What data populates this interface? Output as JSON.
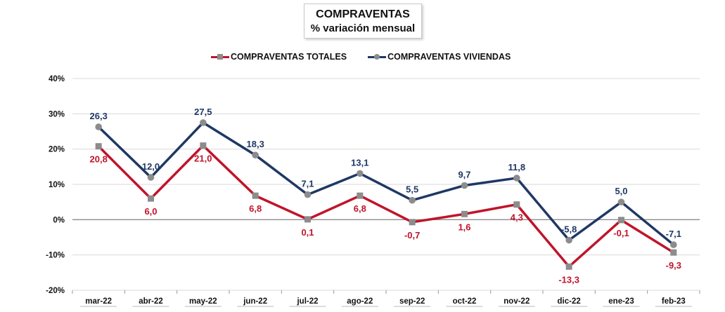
{
  "header": {
    "title_line1": "COMPRAVENTAS",
    "title_line2": "% variación mensual"
  },
  "colors": {
    "totales": "#c0142a",
    "viviendas": "#1f3864",
    "marker": "#8c8c8c",
    "grid": "#d9d9d9",
    "zero": "#8c8c8c"
  },
  "chart_data": {
    "type": "line",
    "title": "COMPRAVENTAS",
    "subtitle": "% variación mensual",
    "categories": [
      "mar-22",
      "abr-22",
      "may-22",
      "jun-22",
      "jul-22",
      "ago-22",
      "sep-22",
      "oct-22",
      "nov-22",
      "dic-22",
      "ene-23",
      "feb-23"
    ],
    "series": [
      {
        "name": "COMPRAVENTAS TOTALES",
        "marker": "square",
        "values": [
          20.8,
          6.0,
          21.0,
          6.8,
          0.1,
          6.8,
          -0.7,
          1.6,
          4.3,
          -13.3,
          -0.1,
          -9.3
        ],
        "labels": [
          "20,8",
          "6,0",
          "21,0",
          "6,8",
          "0,1",
          "6,8",
          "-0,7",
          "1,6",
          "4,3",
          "-13,3",
          "-0,1",
          "-9,3"
        ]
      },
      {
        "name": "COMPRAVENTAS VIVIENDAS",
        "marker": "circle",
        "values": [
          26.3,
          12.0,
          27.5,
          18.3,
          7.1,
          13.1,
          5.5,
          9.7,
          11.8,
          -5.8,
          5.0,
          -7.1
        ],
        "labels": [
          "26,3",
          "12,0",
          "27,5",
          "18,3",
          "7,1",
          "13,1",
          "5,5",
          "9,7",
          "11,8",
          "-5,8",
          "5,0",
          "-7,1"
        ]
      }
    ],
    "y_ticks": [
      40,
      30,
      20,
      10,
      0,
      -10,
      -20
    ],
    "y_tick_labels": [
      "40%",
      "30%",
      "20%",
      "10%",
      "0%",
      "-10%",
      "-20%"
    ],
    "ylim": [
      -20,
      40
    ],
    "grid": true,
    "legend_position": "top-center"
  }
}
